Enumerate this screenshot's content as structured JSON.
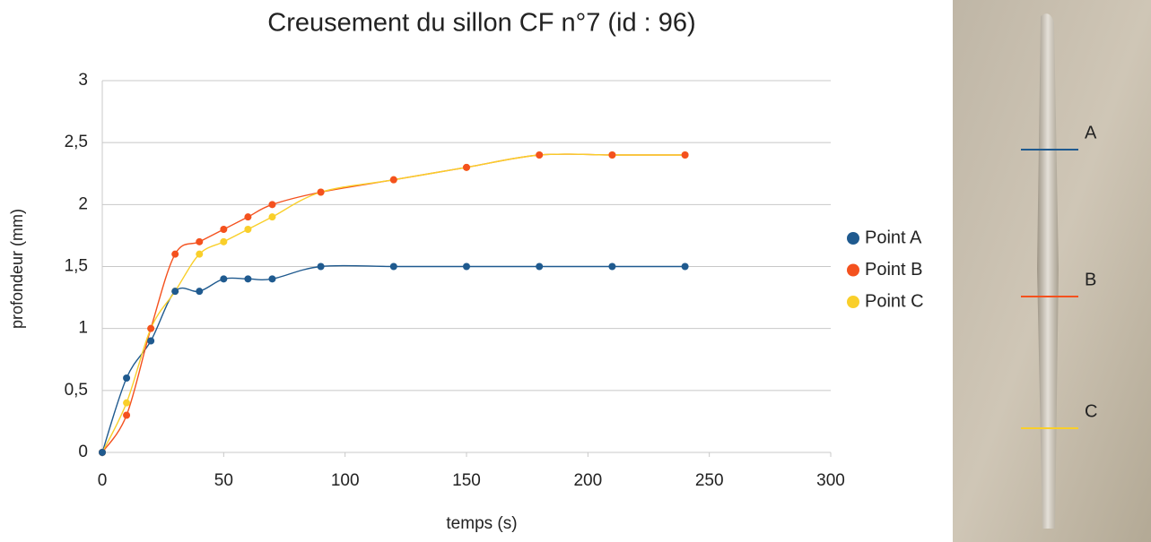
{
  "chart_data": {
    "type": "scatter",
    "title": "Creusement du sillon CF n°7 (id : 96)",
    "x_label": "temps (s)",
    "y_label": "profondeur (mm)",
    "xlim": [
      0,
      300
    ],
    "xticks": [
      0,
      50,
      100,
      150,
      200,
      250,
      300
    ],
    "ylim": [
      0,
      3
    ],
    "yticks": [
      0,
      {
        "value": 0.5,
        "label": "0,5"
      },
      1,
      {
        "value": 1.5,
        "label": "1,5"
      },
      2,
      {
        "value": 2.5,
        "label": "2,5"
      },
      3
    ],
    "grid": true,
    "legend": "right",
    "series": [
      {
        "name": "Point A",
        "color": "#1f5a8f",
        "x": [
          0,
          10,
          20,
          30,
          40,
          50,
          60,
          70,
          90,
          120,
          150,
          180,
          210,
          240
        ],
        "values": [
          0,
          0.6,
          0.9,
          1.3,
          1.3,
          1.4,
          1.4,
          1.4,
          1.5,
          1.5,
          1.5,
          1.5,
          1.5,
          1.5
        ]
      },
      {
        "name": "Point B",
        "color": "#f4511e",
        "x": [
          0,
          10,
          20,
          30,
          40,
          50,
          60,
          70,
          90,
          120,
          150,
          180,
          210,
          240
        ],
        "values": [
          0,
          0.3,
          1.0,
          1.6,
          1.7,
          1.8,
          1.9,
          2.0,
          2.1,
          2.2,
          2.3,
          2.4,
          2.4,
          2.4
        ]
      },
      {
        "name": "Point C",
        "color": "#f9cf2a",
        "x": [
          0,
          10,
          20,
          30,
          40,
          50,
          60,
          70,
          90,
          120,
          150,
          180,
          210,
          240
        ],
        "values": [
          0,
          0.4,
          1.0,
          1.3,
          1.6,
          1.7,
          1.8,
          1.9,
          2.1,
          2.2,
          2.3,
          2.4,
          2.4,
          2.4
        ]
      }
    ]
  },
  "photo_labels": [
    "A",
    "B",
    "C"
  ]
}
